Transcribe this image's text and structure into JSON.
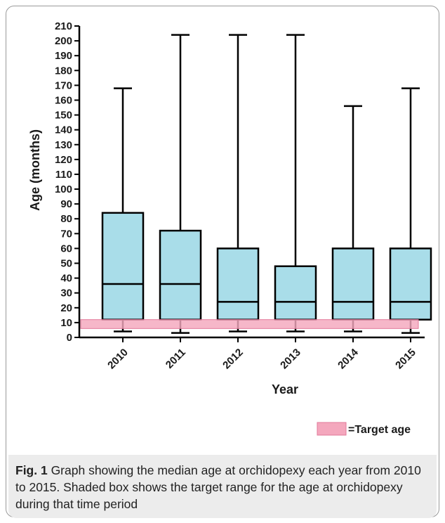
{
  "chart_data": {
    "type": "box",
    "title": "",
    "xlabel": "Year",
    "ylabel": "Age (months)",
    "ylim": [
      0,
      210
    ],
    "yticks": [
      0,
      10,
      20,
      30,
      40,
      50,
      60,
      70,
      80,
      90,
      100,
      110,
      120,
      130,
      140,
      150,
      160,
      170,
      180,
      190,
      200,
      210
    ],
    "categories": [
      "2010",
      "2011",
      "2012",
      "2013",
      "2014",
      "2015"
    ],
    "boxes": [
      {
        "year": "2010",
        "min": 4,
        "q1": 12,
        "median": 36,
        "q3": 84,
        "max": 168
      },
      {
        "year": "2011",
        "min": 3,
        "q1": 12,
        "median": 36,
        "q3": 72,
        "max": 204
      },
      {
        "year": "2012",
        "min": 4,
        "q1": 12,
        "median": 24,
        "q3": 60,
        "max": 204
      },
      {
        "year": "2013",
        "min": 4,
        "q1": 12,
        "median": 24,
        "q3": 48,
        "max": 204
      },
      {
        "year": "2014",
        "min": 4,
        "q1": 12,
        "median": 24,
        "q3": 60,
        "max": 156
      },
      {
        "year": "2015",
        "min": 3,
        "q1": 12,
        "median": 24,
        "q3": 60,
        "max": 168
      }
    ],
    "target_range": {
      "low": 6,
      "high": 12
    },
    "legend": {
      "label": "=Target age",
      "placement": "bottom-right"
    },
    "colors": {
      "box_fill": "#a9dde9",
      "target_fill": "#f4a7bd",
      "line": "#000000"
    }
  },
  "caption": {
    "label": "Fig. 1",
    "text": " Graph showing the median age at orchidopexy each year from 2010 to 2015. Shaded box shows the target range for the age at orchidopexy during that time period"
  }
}
